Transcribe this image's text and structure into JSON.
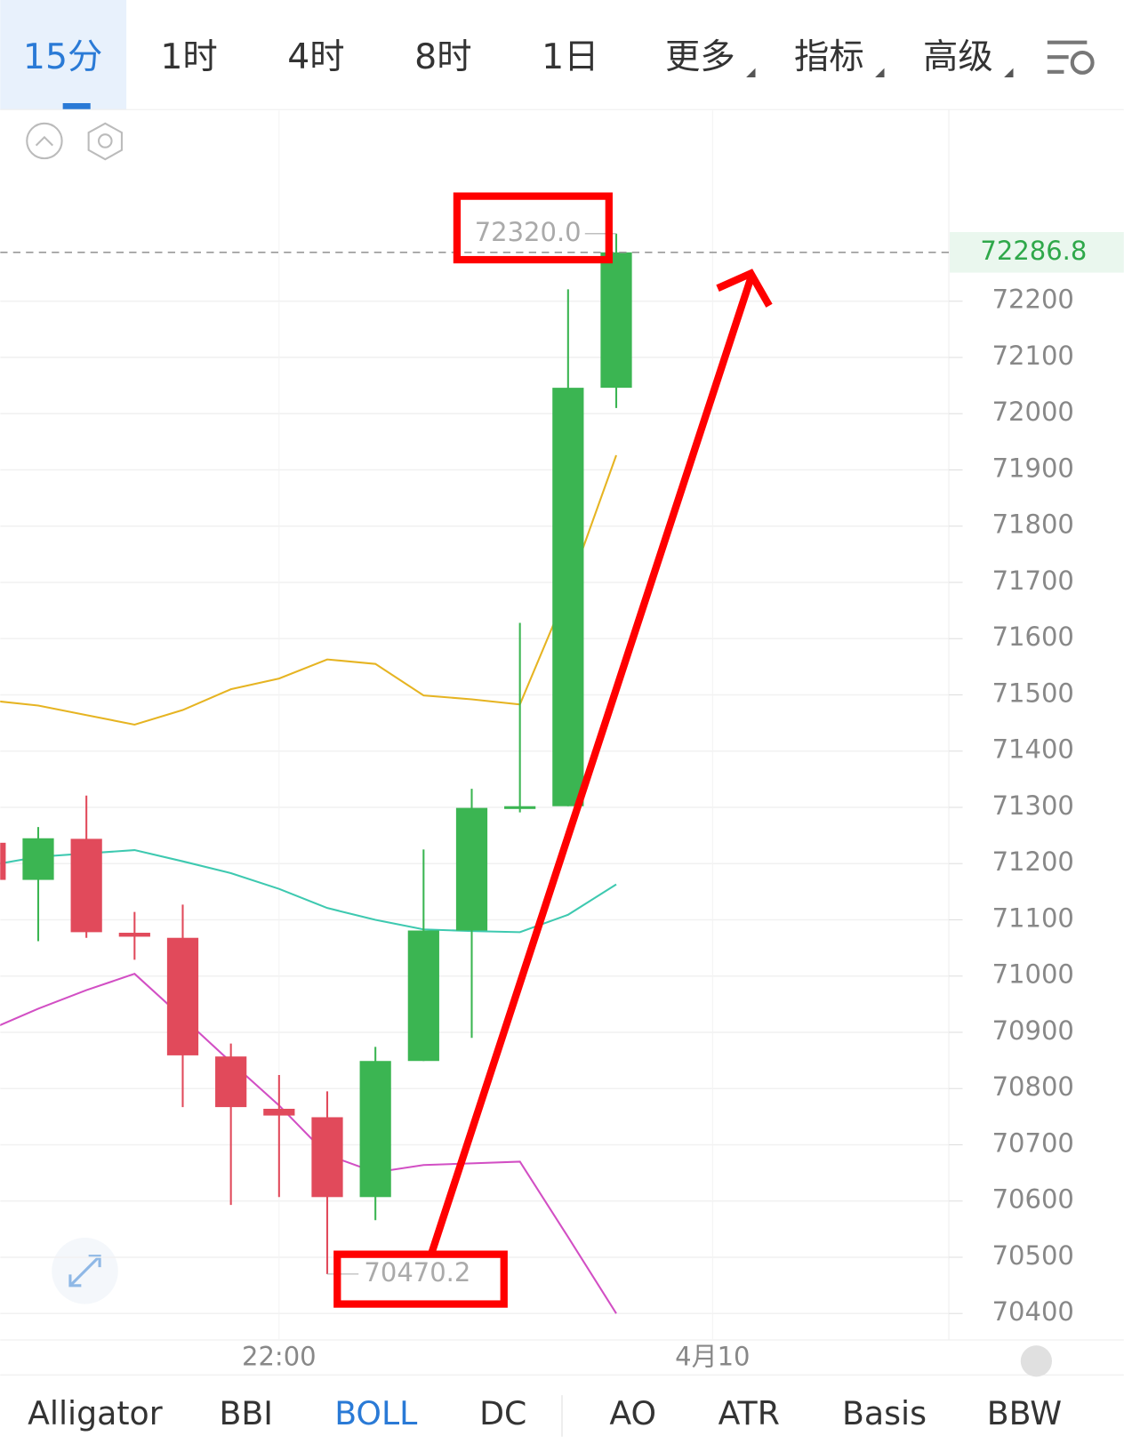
{
  "tabs": {
    "items": [
      "15分",
      "1时",
      "4时",
      "8时",
      "1日",
      "更多",
      "指标",
      "高级"
    ],
    "active": 0
  },
  "indicators": {
    "items": [
      "Alligator",
      "BBI",
      "BOLL",
      "DC",
      "AO",
      "ATR",
      "Basis",
      "BBW"
    ],
    "active": 2
  },
  "chart_data": {
    "type": "candlestick",
    "open": [
      71237,
      71171,
      71244,
      71077,
      71068,
      70857,
      70764,
      70749,
      70607,
      70849,
      71081,
      71299,
      71302,
      72046
    ],
    "high": [
      71237,
      71265,
      71321,
      71114,
      71127,
      70880,
      70824,
      70795,
      70874,
      71225,
      71333,
      71628,
      72221,
      72320.0
    ],
    "low": [
      71171,
      71062,
      71068,
      71029,
      70767,
      70593,
      70607,
      70470.2,
      70566,
      70849,
      70890,
      71291,
      71302,
      72010
    ],
    "close": [
      71171,
      71245,
      71078,
      71070,
      70859,
      70767,
      70752,
      70607,
      70849,
      71081,
      71299,
      71302,
      72046,
      72286.8
    ],
    "up_color": "#3bb552",
    "down_color": "#e14a5b",
    "series": [
      {
        "color": "#e6b422",
        "values": [
          71490,
          71481,
          71464,
          71447,
          71473,
          71510,
          71529,
          71563,
          71555,
          71499,
          71492,
          71483,
          71687,
          71926
        ]
      },
      {
        "color": "#3ec9b0",
        "values": [
          71197,
          71212,
          71218,
          71224,
          71204,
          71183,
          71155,
          71121,
          71100,
          71083,
          71080,
          71078,
          71109,
          71163
        ]
      },
      {
        "color": "#d24fc4",
        "values": [
          70905,
          70942,
          70975,
          71004,
          70926,
          70847,
          70770,
          70682,
          70651,
          70664,
          70667,
          70670,
          70536,
          70400
        ]
      }
    ],
    "ylim": [
      70353,
      72539
    ],
    "yticks": [
      70400,
      70500,
      70600,
      70700,
      70800,
      70900,
      71000,
      71100,
      71200,
      71300,
      71400,
      71500,
      71600,
      71700,
      71800,
      71900,
      72000,
      72100,
      72200
    ],
    "xticks": [
      {
        "value": 6,
        "label": "22:00"
      },
      {
        "value": 15,
        "label": "4月10"
      }
    ],
    "grid": true,
    "last_price": 72286.8,
    "last_price_color": "#2fa84a",
    "annotations": [
      {
        "value": 72320.0,
        "label": "72320.0"
      },
      {
        "value": 70470.2,
        "label": "70470.2"
      }
    ]
  }
}
